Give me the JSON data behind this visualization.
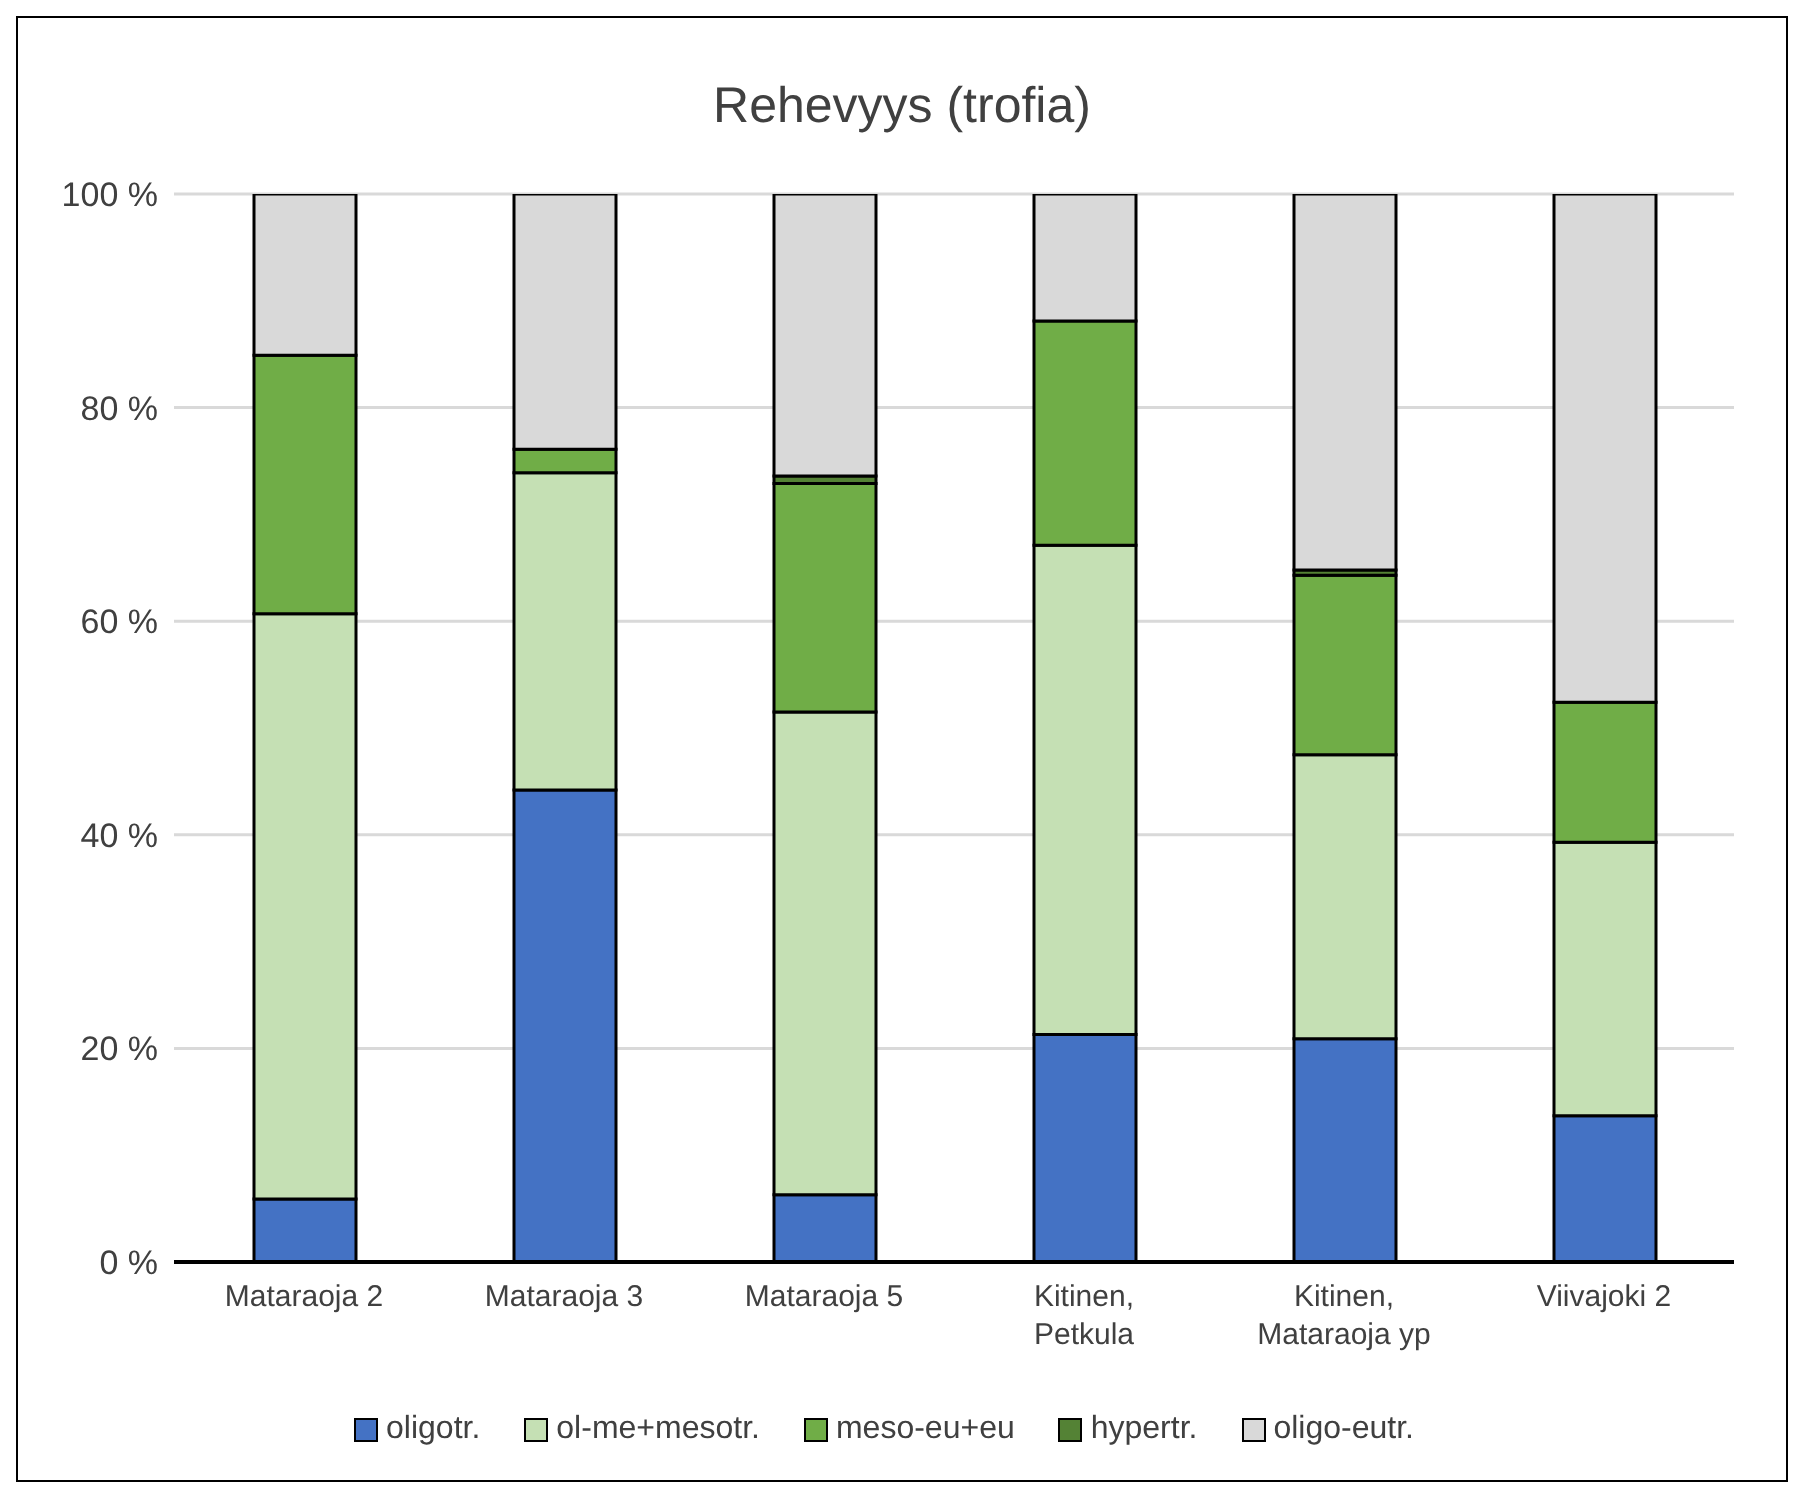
{
  "chart_data": {
    "type": "bar",
    "title": "Rehevyys (trofia)",
    "stacked": true,
    "categories": [
      "Mataraoja 2",
      "Mataraoja 3",
      "Mataraoja 5",
      "Kitinen,\nPetkula",
      "Kitinen,\nMataraoja yp",
      "Viivajoki 2"
    ],
    "series": [
      {
        "name": "oligotr.",
        "color": "#4472c4",
        "values": [
          5.9,
          44.2,
          6.3,
          21.3,
          20.9,
          13.7
        ]
      },
      {
        "name": "ol-me+mesotr.",
        "color": "#c5e0b4",
        "values": [
          54.8,
          29.7,
          45.2,
          45.8,
          26.6,
          25.6
        ]
      },
      {
        "name": "meso-eu+eu",
        "color": "#70ad47",
        "values": [
          24.2,
          2.2,
          21.4,
          21.0,
          16.8,
          13.1
        ]
      },
      {
        "name": "hypertr.",
        "color": "#548235",
        "values": [
          0,
          0,
          0.7,
          0,
          0.5,
          0
        ]
      },
      {
        "name": "oligo-eutr.",
        "color": "#d9d9d9",
        "values": [
          15.1,
          23.9,
          26.4,
          11.9,
          35.2,
          47.6
        ]
      }
    ],
    "ylim": [
      0,
      100
    ],
    "yticks": [
      {
        "value": 0,
        "label": "0 %"
      },
      {
        "value": 20,
        "label": "20 %"
      },
      {
        "value": 40,
        "label": "40 %"
      },
      {
        "value": 60,
        "label": "60 %"
      },
      {
        "value": 80,
        "label": "80 %"
      },
      {
        "value": 100,
        "label": "100 %"
      }
    ],
    "grid": "y",
    "legend": "bottom"
  }
}
